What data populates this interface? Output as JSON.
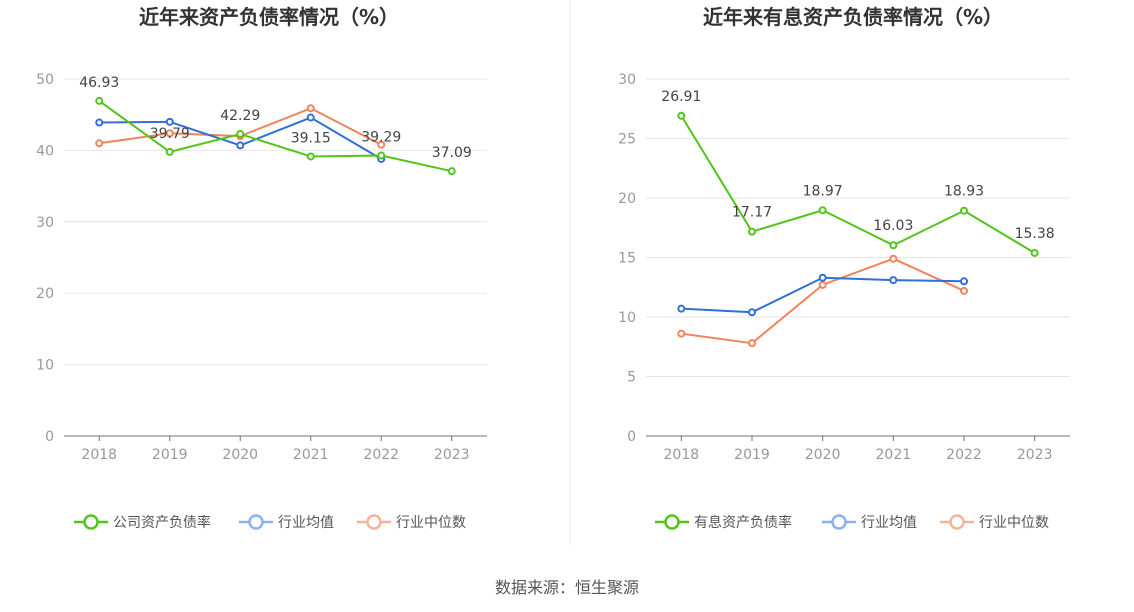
{
  "source_text": "数据来源：恒生聚源",
  "chart_data": [
    {
      "type": "line",
      "title": "近年来资产负债率情况（%）",
      "categories": [
        "2018",
        "2019",
        "2020",
        "2021",
        "2022",
        "2023"
      ],
      "ylim": [
        0,
        50
      ],
      "yticks": [
        0,
        10,
        20,
        30,
        40,
        50
      ],
      "series": [
        {
          "name": "公司资产负债率",
          "color": "#52c41a",
          "values": [
            46.93,
            39.79,
            42.29,
            39.15,
            39.29,
            37.09
          ],
          "labels": [
            "46.93",
            "39.79",
            "42.29",
            "39.15",
            "39.29",
            "37.09"
          ]
        },
        {
          "name": "行业均值",
          "color": "#2f6fd6",
          "values": [
            43.9,
            44.0,
            40.7,
            44.6,
            38.8,
            null
          ]
        },
        {
          "name": "行业中位数",
          "color": "#f0845a",
          "values": [
            41.0,
            42.4,
            42.0,
            45.9,
            40.8,
            null
          ]
        }
      ],
      "legend_colors": [
        "#52c41a",
        "#8fb0f0",
        "#f5b49a"
      ]
    },
    {
      "type": "line",
      "title": "近年来有息资产负债率情况（%）",
      "categories": [
        "2018",
        "2019",
        "2020",
        "2021",
        "2022",
        "2023"
      ],
      "ylim": [
        0,
        30
      ],
      "yticks": [
        0,
        5,
        10,
        15,
        20,
        25,
        30
      ],
      "series": [
        {
          "name": "有息资产负债率",
          "color": "#52c41a",
          "values": [
            26.91,
            17.17,
            18.97,
            16.03,
            18.93,
            15.38
          ],
          "labels": [
            "26.91",
            "17.17",
            "18.97",
            "16.03",
            "18.93",
            "15.38"
          ]
        },
        {
          "name": "行业均值",
          "color": "#2f6fd6",
          "values": [
            10.7,
            10.4,
            13.3,
            13.1,
            13.0,
            null
          ]
        },
        {
          "name": "行业中位数",
          "color": "#f0845a",
          "values": [
            8.6,
            7.8,
            12.7,
            14.9,
            12.2,
            null
          ]
        }
      ],
      "legend_colors": [
        "#52c41a",
        "#8fb0f0",
        "#f5b49a"
      ]
    }
  ]
}
